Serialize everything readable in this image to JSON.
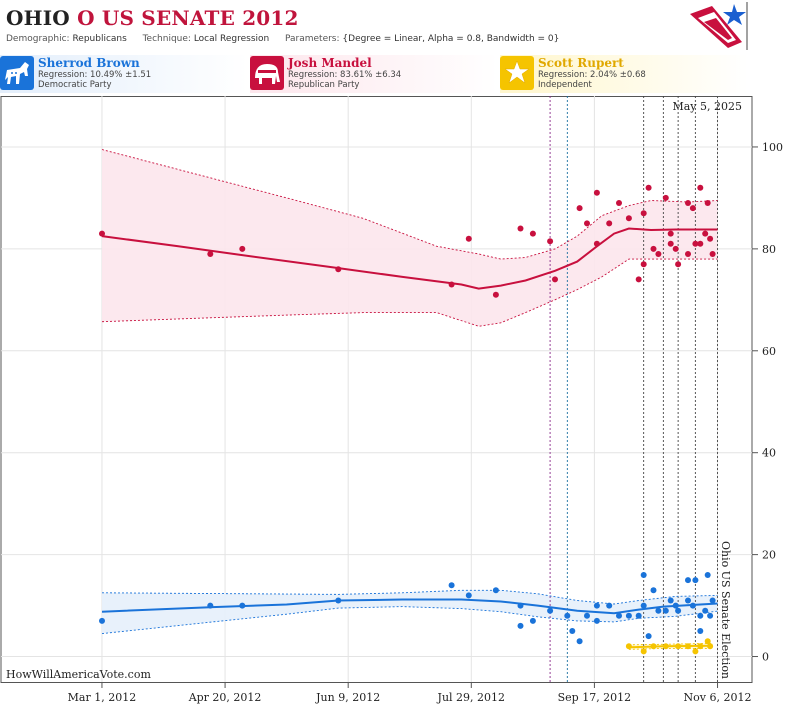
{
  "header": {
    "state": "OHIO",
    "race": "O US SENATE 2012",
    "demographic_label": "Demographic:",
    "demographic_value": "Republicans",
    "technique_label": "Technique:",
    "technique_value": "Local Regression",
    "parameters_label": "Parameters:",
    "parameters_value": "{Degree = Linear, Alpha = 0.8, Bandwidth = 0}"
  },
  "candidates": [
    {
      "name": "Sherrod Brown",
      "regression": "Regression: 10.49% ±1.51",
      "party": "Democratic Party",
      "color": "#1a73d9",
      "icon": "donkey-icon"
    },
    {
      "name": "Josh Mandel",
      "regression": "Regression: 83.61% ±6.34",
      "party": "Republican Party",
      "color": "#c8103e",
      "icon": "elephant-icon"
    },
    {
      "name": "Scott Rupert",
      "regression": "Regression: 2.04% ±0.68",
      "party": "Independent",
      "color": "#f5c400",
      "icon": "star-icon"
    }
  ],
  "chart_data": {
    "type": "scatter",
    "date_label": "May 5, 2025",
    "watermark": "HowWillAmericaVote.com",
    "election_label": "Ohio US Senate Election",
    "x_ticks": [
      "Mar 1, 2012",
      "Apr 20, 2012",
      "Jun 9, 2012",
      "Jul 29, 2012",
      "Sep 17, 2012",
      "Nov 6, 2012"
    ],
    "y_ticks": [
      "0",
      "20",
      "40",
      "60",
      "80",
      "100"
    ],
    "ylim": [
      -5,
      110
    ],
    "xlim": [
      "2012-01-20",
      "2012-11-20"
    ],
    "event_lines": [
      {
        "date": "2012-08-30",
        "color": "#8a2a8a"
      },
      {
        "date": "2012-09-06",
        "color": "#1a6fa0"
      },
      {
        "date": "2012-10-07",
        "color": "#444"
      },
      {
        "date": "2012-10-15",
        "color": "#444"
      },
      {
        "date": "2012-10-21",
        "color": "#444"
      },
      {
        "date": "2012-10-28",
        "color": "#444"
      },
      {
        "date": "2012-11-06",
        "color": "#444"
      }
    ],
    "series": [
      {
        "name": "Josh Mandel",
        "color": "#c8103e",
        "band": "#fce6ec",
        "points": [
          [
            "2012-03-01",
            83
          ],
          [
            "2012-04-14",
            79
          ],
          [
            "2012-04-27",
            80
          ],
          [
            "2012-06-05",
            76
          ],
          [
            "2012-07-21",
            73
          ],
          [
            "2012-07-28",
            82
          ],
          [
            "2012-08-08",
            71
          ],
          [
            "2012-08-18",
            84
          ],
          [
            "2012-08-23",
            83
          ],
          [
            "2012-08-30",
            81.5
          ],
          [
            "2012-09-01",
            74
          ],
          [
            "2012-09-11",
            88
          ],
          [
            "2012-09-14",
            85
          ],
          [
            "2012-09-18",
            91
          ],
          [
            "2012-09-18",
            81
          ],
          [
            "2012-09-23",
            85
          ],
          [
            "2012-09-27",
            89
          ],
          [
            "2012-10-01",
            86
          ],
          [
            "2012-10-05",
            74
          ],
          [
            "2012-10-07",
            77
          ],
          [
            "2012-10-07",
            87
          ],
          [
            "2012-10-09",
            92
          ],
          [
            "2012-10-11",
            80
          ],
          [
            "2012-10-13",
            79
          ],
          [
            "2012-10-16",
            90
          ],
          [
            "2012-10-18",
            83
          ],
          [
            "2012-10-18",
            81
          ],
          [
            "2012-10-20",
            80
          ],
          [
            "2012-10-21",
            77
          ],
          [
            "2012-10-25",
            79
          ],
          [
            "2012-10-25",
            89
          ],
          [
            "2012-10-27",
            88
          ],
          [
            "2012-10-28",
            81
          ],
          [
            "2012-10-30",
            81
          ],
          [
            "2012-10-30",
            92
          ],
          [
            "2012-11-01",
            83
          ],
          [
            "2012-11-02",
            89
          ],
          [
            "2012-11-03",
            82
          ],
          [
            "2012-11-04",
            79
          ]
        ],
        "fit": [
          [
            "2012-03-01",
            82.5
          ],
          [
            "2012-04-01",
            80.5
          ],
          [
            "2012-05-01",
            78.5
          ],
          [
            "2012-06-01",
            76.5
          ],
          [
            "2012-07-01",
            74.5
          ],
          [
            "2012-07-25",
            73
          ],
          [
            "2012-08-01",
            72.2
          ],
          [
            "2012-08-10",
            72.8
          ],
          [
            "2012-08-20",
            73.8
          ],
          [
            "2012-09-01",
            75.7
          ],
          [
            "2012-09-10",
            77.5
          ],
          [
            "2012-09-18",
            80.5
          ],
          [
            "2012-09-25",
            83
          ],
          [
            "2012-10-01",
            84
          ],
          [
            "2012-10-10",
            83.7
          ],
          [
            "2012-10-20",
            83.8
          ],
          [
            "2012-11-06",
            83.8
          ]
        ],
        "upper": [
          [
            "2012-03-01",
            99.5
          ],
          [
            "2012-04-15",
            93.8
          ],
          [
            "2012-05-15",
            90
          ],
          [
            "2012-06-15",
            86
          ],
          [
            "2012-07-15",
            80.5
          ],
          [
            "2012-08-01",
            79
          ],
          [
            "2012-08-10",
            78
          ],
          [
            "2012-08-20",
            78.3
          ],
          [
            "2012-09-01",
            80
          ],
          [
            "2012-09-10",
            82.5
          ],
          [
            "2012-09-20",
            86.5
          ],
          [
            "2012-10-01",
            88.5
          ],
          [
            "2012-10-10",
            89.5
          ],
          [
            "2012-10-25",
            89.2
          ],
          [
            "2012-11-06",
            89.5
          ]
        ],
        "lower": [
          [
            "2012-03-01",
            65.7
          ],
          [
            "2012-04-15",
            66.5
          ],
          [
            "2012-05-15",
            67
          ],
          [
            "2012-06-15",
            67.5
          ],
          [
            "2012-07-15",
            67.5
          ],
          [
            "2012-08-01",
            64.8
          ],
          [
            "2012-08-10",
            65.5
          ],
          [
            "2012-08-20",
            67.5
          ],
          [
            "2012-09-01",
            70
          ],
          [
            "2012-09-10",
            72
          ],
          [
            "2012-09-20",
            74.5
          ],
          [
            "2012-10-01",
            78
          ],
          [
            "2012-10-10",
            78
          ],
          [
            "2012-10-20",
            78
          ],
          [
            "2012-11-06",
            78
          ]
        ]
      },
      {
        "name": "Sherrod Brown",
        "color": "#1a73d9",
        "band": "#e6f0fb",
        "points": [
          [
            "2012-03-01",
            7
          ],
          [
            "2012-04-14",
            10
          ],
          [
            "2012-04-27",
            10
          ],
          [
            "2012-06-05",
            11
          ],
          [
            "2012-07-21",
            14
          ],
          [
            "2012-07-28",
            12
          ],
          [
            "2012-08-08",
            13
          ],
          [
            "2012-08-18",
            10
          ],
          [
            "2012-08-18",
            6
          ],
          [
            "2012-08-23",
            7
          ],
          [
            "2012-08-30",
            9
          ],
          [
            "2012-09-06",
            8
          ],
          [
            "2012-09-08",
            5
          ],
          [
            "2012-09-11",
            3
          ],
          [
            "2012-09-14",
            8
          ],
          [
            "2012-09-18",
            10
          ],
          [
            "2012-09-18",
            7
          ],
          [
            "2012-09-23",
            10
          ],
          [
            "2012-09-27",
            8
          ],
          [
            "2012-10-01",
            8
          ],
          [
            "2012-10-05",
            8
          ],
          [
            "2012-10-07",
            16
          ],
          [
            "2012-10-07",
            10
          ],
          [
            "2012-10-09",
            4
          ],
          [
            "2012-10-11",
            13
          ],
          [
            "2012-10-13",
            9
          ],
          [
            "2012-10-16",
            9
          ],
          [
            "2012-10-18",
            11
          ],
          [
            "2012-10-20",
            10
          ],
          [
            "2012-10-21",
            9
          ],
          [
            "2012-10-25",
            11
          ],
          [
            "2012-10-25",
            15
          ],
          [
            "2012-10-27",
            10
          ],
          [
            "2012-10-28",
            15
          ],
          [
            "2012-10-30",
            5
          ],
          [
            "2012-10-30",
            8
          ],
          [
            "2012-11-01",
            9
          ],
          [
            "2012-11-02",
            16
          ],
          [
            "2012-11-03",
            8
          ],
          [
            "2012-11-04",
            11
          ]
        ],
        "fit": [
          [
            "2012-03-01",
            8.8
          ],
          [
            "2012-04-15",
            9.7
          ],
          [
            "2012-05-15",
            10.2
          ],
          [
            "2012-06-05",
            11
          ],
          [
            "2012-07-01",
            11.2
          ],
          [
            "2012-07-25",
            11.2
          ],
          [
            "2012-08-10",
            10.8
          ],
          [
            "2012-08-25",
            10
          ],
          [
            "2012-09-10",
            9
          ],
          [
            "2012-09-25",
            8.5
          ],
          [
            "2012-10-05",
            9.2
          ],
          [
            "2012-10-15",
            9.8
          ],
          [
            "2012-11-06",
            10.4
          ]
        ],
        "upper": [
          [
            "2012-03-01",
            12.5
          ],
          [
            "2012-05-01",
            12.3
          ],
          [
            "2012-06-05",
            12.2
          ],
          [
            "2012-07-01",
            12.5
          ],
          [
            "2012-07-25",
            13
          ],
          [
            "2012-08-10",
            13
          ],
          [
            "2012-08-25",
            12.3
          ],
          [
            "2012-09-10",
            11
          ],
          [
            "2012-09-25",
            10.3
          ],
          [
            "2012-10-05",
            11
          ],
          [
            "2012-10-20",
            11.8
          ],
          [
            "2012-11-06",
            12
          ]
        ],
        "lower": [
          [
            "2012-03-01",
            4.5
          ],
          [
            "2012-04-15",
            6.8
          ],
          [
            "2012-05-15",
            8.3
          ],
          [
            "2012-06-05",
            9.5
          ],
          [
            "2012-07-01",
            9.8
          ],
          [
            "2012-07-25",
            9.4
          ],
          [
            "2012-08-10",
            8.8
          ],
          [
            "2012-08-25",
            7.8
          ],
          [
            "2012-09-10",
            7
          ],
          [
            "2012-09-25",
            6.8
          ],
          [
            "2012-10-05",
            7.5
          ],
          [
            "2012-10-20",
            7.9
          ],
          [
            "2012-11-06",
            8.9
          ]
        ]
      },
      {
        "name": "Scott Rupert",
        "color": "#f5c400",
        "band": "#fff6cc",
        "points": [
          [
            "2012-10-01",
            2
          ],
          [
            "2012-10-07",
            1
          ],
          [
            "2012-10-11",
            2
          ],
          [
            "2012-10-16",
            2
          ],
          [
            "2012-10-21",
            2
          ],
          [
            "2012-10-25",
            2
          ],
          [
            "2012-10-28",
            1
          ],
          [
            "2012-10-30",
            2
          ],
          [
            "2012-11-02",
            3
          ],
          [
            "2012-11-03",
            2
          ]
        ],
        "fit": [
          [
            "2012-10-01",
            1.8
          ],
          [
            "2012-10-15",
            2.0
          ],
          [
            "2012-11-04",
            2.1
          ]
        ],
        "upper": [
          [
            "2012-10-01",
            2.3
          ],
          [
            "2012-10-15",
            2.4
          ],
          [
            "2012-11-04",
            2.6
          ]
        ],
        "lower": [
          [
            "2012-10-01",
            1.4
          ],
          [
            "2012-10-15",
            1.6
          ],
          [
            "2012-11-04",
            1.6
          ]
        ]
      }
    ]
  }
}
